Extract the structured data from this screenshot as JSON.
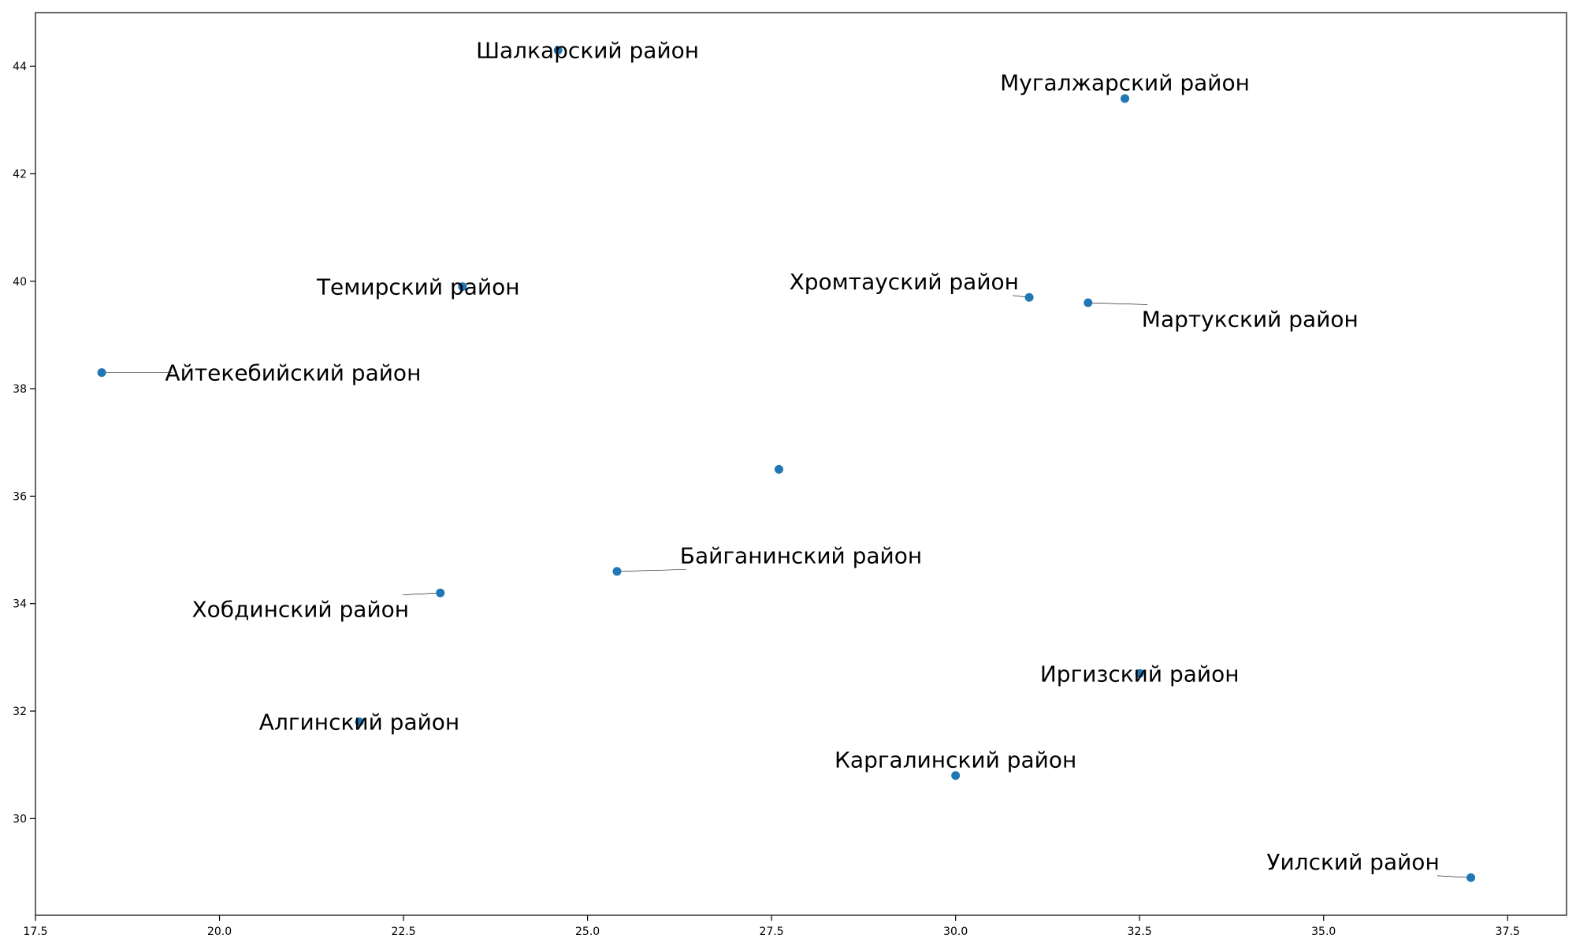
{
  "chart_data": {
    "type": "scatter",
    "title": "",
    "xlabel": "",
    "ylabel": "",
    "xlim": [
      17.5,
      38.3
    ],
    "ylim": [
      28.2,
      45.0
    ],
    "x_ticks": [
      17.5,
      20.0,
      22.5,
      25.0,
      27.5,
      30.0,
      32.5,
      35.0,
      37.5
    ],
    "x_tick_labels": [
      "17.5",
      "20.0",
      "22.5",
      "25.0",
      "27.5",
      "30.0",
      "32.5",
      "35.0",
      "37.5"
    ],
    "y_ticks": [
      30,
      32,
      34,
      36,
      38,
      40,
      42,
      44
    ],
    "y_tick_labels": [
      "30",
      "32",
      "34",
      "36",
      "38",
      "40",
      "42",
      "44"
    ],
    "grid": false,
    "legend": "none",
    "point_color": "#1f77b4",
    "points": [
      {
        "label": "Шалкарский район",
        "x": 24.6,
        "y": 44.3,
        "text_x": 25.0,
        "text_y": 44.3
      },
      {
        "label": "Мугалжарский район",
        "x": 32.3,
        "y": 43.4,
        "text_x": 32.3,
        "text_y": 43.7
      },
      {
        "label": "Темирский район",
        "x": 23.3,
        "y": 39.9,
        "text_x": 22.7,
        "text_y": 39.9
      },
      {
        "label": "Хромтауский район",
        "x": 31.0,
        "y": 39.7,
        "text_x": 29.3,
        "text_y": 40.0
      },
      {
        "label": "Мартукский район",
        "x": 31.8,
        "y": 39.6,
        "text_x": 34.0,
        "text_y": 39.3
      },
      {
        "label": "Айтекебийский район",
        "x": 18.4,
        "y": 38.3,
        "text_x": 21.0,
        "text_y": 38.3
      },
      {
        "label": "",
        "x": 27.6,
        "y": 36.5,
        "text_x": 27.6,
        "text_y": 36.5
      },
      {
        "label": "Байганинский район",
        "x": 25.4,
        "y": 34.6,
        "text_x": 27.9,
        "text_y": 34.9
      },
      {
        "label": "Хобдинский район",
        "x": 23.0,
        "y": 34.2,
        "text_x": 21.1,
        "text_y": 33.9
      },
      {
        "label": "Иргизский район",
        "x": 32.5,
        "y": 32.7,
        "text_x": 32.5,
        "text_y": 32.7
      },
      {
        "label": "Алгинский район",
        "x": 21.9,
        "y": 31.8,
        "text_x": 21.9,
        "text_y": 31.8
      },
      {
        "label": "Каргалинский район",
        "x": 30.0,
        "y": 30.8,
        "text_x": 30.0,
        "text_y": 31.1
      },
      {
        "label": "Уилский район",
        "x": 37.0,
        "y": 28.9,
        "text_x": 35.4,
        "text_y": 29.2
      }
    ]
  }
}
